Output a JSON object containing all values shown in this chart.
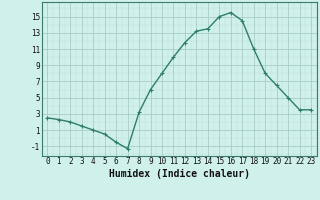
{
  "x": [
    0,
    1,
    2,
    3,
    4,
    5,
    6,
    7,
    8,
    9,
    10,
    11,
    12,
    13,
    14,
    15,
    16,
    17,
    18,
    19,
    20,
    21,
    22,
    23
  ],
  "y": [
    2.5,
    2.3,
    2.0,
    1.5,
    1.0,
    0.5,
    -0.5,
    -1.3,
    3.2,
    6.0,
    8.0,
    10.0,
    11.8,
    13.2,
    13.5,
    15.0,
    15.5,
    14.5,
    11.0,
    8.0,
    6.5,
    5.0,
    3.5,
    3.5
  ],
  "line_color": "#2e7d6e",
  "marker": "+",
  "marker_size": 3,
  "bg_color": "#cff0eb",
  "grid_color_major": "#aacdc8",
  "xlabel": "Humidex (Indice chaleur)",
  "xlabel_fontsize": 7,
  "ylabel_ticks": [
    -1,
    1,
    3,
    5,
    7,
    9,
    11,
    13,
    15
  ],
  "xlim": [
    -0.5,
    23.5
  ],
  "ylim": [
    -2.2,
    16.8
  ],
  "xticks": [
    0,
    1,
    2,
    3,
    4,
    5,
    6,
    7,
    8,
    9,
    10,
    11,
    12,
    13,
    14,
    15,
    16,
    17,
    18,
    19,
    20,
    21,
    22,
    23
  ],
  "tick_fontsize": 5.5,
  "line_width": 1.0
}
